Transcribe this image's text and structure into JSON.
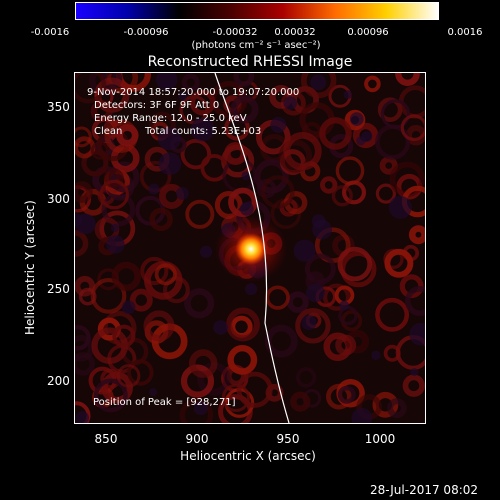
{
  "colorbar": {
    "ticks": [
      "-0.0016",
      "-0.00096",
      "-0.00032",
      "0.00032",
      "0.00096",
      "0.0016"
    ],
    "unit_label": "(photons cm⁻² s⁻¹ asec⁻²)",
    "colors": [
      "#1a00ff",
      "#0000aa",
      "#000000",
      "#4a0000",
      "#aa0000",
      "#ff6a00",
      "#ffd000",
      "#ffffff"
    ]
  },
  "plot": {
    "title": "Reconstructed RHESSI Image",
    "annotations": {
      "time_range": "9-Nov-2014 18:57:20.000 to 19:07:20.000",
      "detectors": "Detectors: 3F 6F 9F  Att 0",
      "energy_range": "Energy Range: 12.0 - 25.0 keV",
      "clean": "Clean",
      "total_counts": "Total counts: 5.23E+03",
      "peak_position": "Position of Peak = [928,271]"
    }
  },
  "x_axis": {
    "label": "Heliocentric X (arcsec)",
    "ticks": [
      "850",
      "900",
      "950",
      "1000"
    ]
  },
  "y_axis": {
    "label": "Heliocentric Y (arcsec)",
    "ticks": [
      "200",
      "250",
      "300",
      "350"
    ]
  },
  "footer": {
    "timestamp": "28-Jul-2017 08:02"
  }
}
